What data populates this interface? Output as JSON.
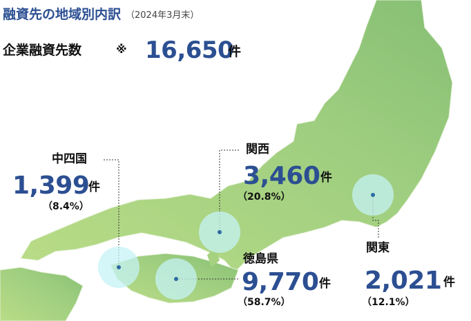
{
  "header": {
    "title": "融資先の地域別内訳",
    "date": "（2024年3月末）"
  },
  "total": {
    "label": "企業融資先数",
    "note": "※",
    "value": "16,650",
    "unit": "件"
  },
  "regions": [
    {
      "name": "中四国",
      "count": "1,399",
      "unit": "件",
      "share": "（8.4%）"
    },
    {
      "name": "関西",
      "count": "3,460",
      "unit": "件",
      "share": "（20.8%）"
    },
    {
      "name": "徳島県",
      "count": "9,770",
      "unit": "件",
      "share": "（58.7%）"
    },
    {
      "name": "関東",
      "count": "2,021",
      "unit": "件",
      "share": "（12.1%）"
    }
  ]
}
